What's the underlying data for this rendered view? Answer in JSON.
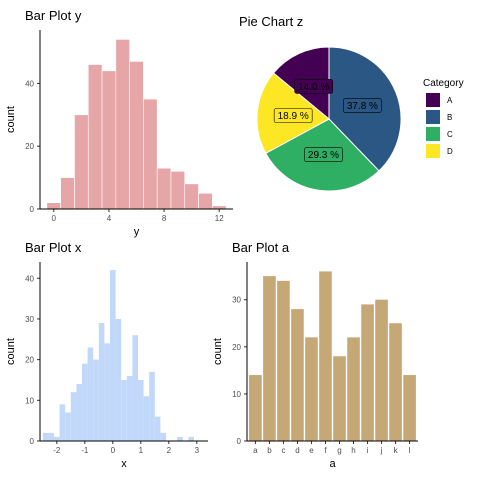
{
  "chart_data": [
    {
      "id": "bar_y",
      "type": "bar",
      "title": "Bar Plot y",
      "xlabel": "y",
      "ylabel": "count",
      "fill": "#e6a6a8",
      "x_ticks": [
        0,
        4,
        8,
        12
      ],
      "y_ticks": [
        0,
        20,
        40
      ],
      "xlim": [
        -1,
        13
      ],
      "ylim": [
        0,
        57
      ],
      "bins": [
        {
          "x": 0,
          "count": 2
        },
        {
          "x": 1,
          "count": 10
        },
        {
          "x": 2,
          "count": 30
        },
        {
          "x": 3,
          "count": 46
        },
        {
          "x": 4,
          "count": 44
        },
        {
          "x": 5,
          "count": 54
        },
        {
          "x": 6,
          "count": 47
        },
        {
          "x": 7,
          "count": 35
        },
        {
          "x": 8,
          "count": 13
        },
        {
          "x": 9,
          "count": 12
        },
        {
          "x": 10,
          "count": 8
        },
        {
          "x": 11,
          "count": 5
        },
        {
          "x": 12,
          "count": 1
        }
      ]
    },
    {
      "id": "pie_z",
      "type": "pie",
      "title": "Pie Chart z",
      "legend_title": "Category",
      "legend_position": "right",
      "slices": [
        {
          "label": "A",
          "value": 14.0,
          "color": "#440154",
          "text": "14.0 %"
        },
        {
          "label": "B",
          "value": 37.8,
          "color": "#2a5783",
          "text": "37.8 %"
        },
        {
          "label": "C",
          "value": 29.3,
          "color": "#2eaf63",
          "text": "29.3 %"
        },
        {
          "label": "D",
          "value": 18.9,
          "color": "#fde725",
          "text": "18.9 %"
        }
      ]
    },
    {
      "id": "hist_x",
      "type": "bar",
      "title": "Bar Plot x",
      "xlabel": "x",
      "ylabel": "count",
      "fill": "#c2d8fb",
      "x_ticks": [
        -2,
        -1,
        0,
        1,
        2,
        3
      ],
      "y_ticks": [
        0,
        10,
        20,
        30,
        40
      ],
      "xlim": [
        -2.6,
        3.4
      ],
      "ylim": [
        0,
        44
      ],
      "bin_width": 0.2,
      "bins": [
        {
          "x": -2.4,
          "count": 2
        },
        {
          "x": -2.2,
          "count": 2
        },
        {
          "x": -2.0,
          "count": 1
        },
        {
          "x": -1.8,
          "count": 9
        },
        {
          "x": -1.6,
          "count": 7
        },
        {
          "x": -1.4,
          "count": 12
        },
        {
          "x": -1.2,
          "count": 14
        },
        {
          "x": -1.0,
          "count": 19
        },
        {
          "x": -0.8,
          "count": 23
        },
        {
          "x": -0.6,
          "count": 20
        },
        {
          "x": -0.4,
          "count": 29
        },
        {
          "x": -0.2,
          "count": 24
        },
        {
          "x": 0.0,
          "count": 42
        },
        {
          "x": 0.2,
          "count": 30
        },
        {
          "x": 0.4,
          "count": 15
        },
        {
          "x": 0.6,
          "count": 16
        },
        {
          "x": 0.8,
          "count": 26
        },
        {
          "x": 1.0,
          "count": 15
        },
        {
          "x": 1.2,
          "count": 11
        },
        {
          "x": 1.4,
          "count": 17
        },
        {
          "x": 1.6,
          "count": 6
        },
        {
          "x": 1.8,
          "count": 2
        },
        {
          "x": 2.0,
          "count": 0
        },
        {
          "x": 2.2,
          "count": 0
        },
        {
          "x": 2.4,
          "count": 1
        },
        {
          "x": 2.6,
          "count": 0
        },
        {
          "x": 2.8,
          "count": 1
        }
      ]
    },
    {
      "id": "bar_a",
      "type": "bar",
      "title": "Bar Plot a",
      "xlabel": "a",
      "ylabel": "count",
      "fill": "#c6a876",
      "y_ticks": [
        0,
        10,
        20,
        30
      ],
      "ylim": [
        0,
        38
      ],
      "categories": [
        "a",
        "b",
        "c",
        "d",
        "e",
        "f",
        "g",
        "h",
        "i",
        "j",
        "k",
        "l"
      ],
      "values": [
        14,
        35,
        34,
        28,
        22,
        36,
        18,
        22,
        29,
        30,
        25,
        14
      ]
    }
  ]
}
